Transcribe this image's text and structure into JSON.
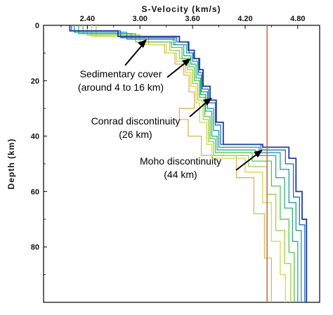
{
  "chart_data": {
    "type": "line",
    "title": "",
    "xlabel": "S-Velocity (km/s)",
    "ylabel": "Depth (km)",
    "x_axis_position": "top",
    "y_inverted": true,
    "xlim": [
      1.9,
      5.05
    ],
    "ylim": [
      0,
      100
    ],
    "x_ticks": [
      "2.40",
      "3.00",
      "3.60",
      "4.20",
      "4.80"
    ],
    "x_tick_values": [
      2.4,
      3.0,
      3.6,
      4.2,
      4.8
    ],
    "y_ticks": [
      "0",
      "20",
      "40",
      "60",
      "80"
    ],
    "y_tick_values": [
      0,
      20,
      40,
      60,
      80
    ],
    "grid": false,
    "reference_line": {
      "velocity": 4.45,
      "color": "#c0602a"
    },
    "series": [
      {
        "color": "#1f3a9e",
        "points": [
          [
            2.2,
            0
          ],
          [
            2.2,
            2
          ],
          [
            2.75,
            2
          ],
          [
            2.75,
            4
          ],
          [
            3.45,
            4
          ],
          [
            3.45,
            6
          ],
          [
            3.55,
            6
          ],
          [
            3.55,
            9
          ],
          [
            3.62,
            9
          ],
          [
            3.62,
            12
          ],
          [
            3.68,
            12
          ],
          [
            3.68,
            16
          ],
          [
            3.72,
            16
          ],
          [
            3.72,
            22
          ],
          [
            3.8,
            22
          ],
          [
            3.8,
            27
          ],
          [
            3.87,
            27
          ],
          [
            3.87,
            35
          ],
          [
            3.95,
            35
          ],
          [
            3.95,
            43
          ],
          [
            4.4,
            43
          ],
          [
            4.4,
            44
          ],
          [
            4.7,
            44
          ],
          [
            4.7,
            48
          ],
          [
            4.78,
            48
          ],
          [
            4.78,
            60
          ],
          [
            4.85,
            60
          ],
          [
            4.85,
            70
          ],
          [
            4.9,
            70
          ],
          [
            4.9,
            100
          ]
        ]
      },
      {
        "color": "#1e6fb8",
        "points": [
          [
            2.22,
            0
          ],
          [
            2.22,
            2
          ],
          [
            2.78,
            2
          ],
          [
            2.78,
            4.5
          ],
          [
            3.42,
            4.5
          ],
          [
            3.42,
            6
          ],
          [
            3.56,
            6
          ],
          [
            3.56,
            10
          ],
          [
            3.61,
            10
          ],
          [
            3.61,
            12
          ],
          [
            3.67,
            12
          ],
          [
            3.67,
            17
          ],
          [
            3.71,
            17
          ],
          [
            3.71,
            23
          ],
          [
            3.78,
            23
          ],
          [
            3.78,
            28
          ],
          [
            3.86,
            28
          ],
          [
            3.86,
            36
          ],
          [
            3.92,
            36
          ],
          [
            3.92,
            43
          ],
          [
            4.38,
            43
          ],
          [
            4.38,
            45
          ],
          [
            4.66,
            45
          ],
          [
            4.66,
            50
          ],
          [
            4.75,
            50
          ],
          [
            4.75,
            62
          ],
          [
            4.82,
            62
          ],
          [
            4.82,
            72
          ],
          [
            4.88,
            72
          ],
          [
            4.88,
            100
          ]
        ]
      },
      {
        "color": "#1e9aa8",
        "points": [
          [
            2.25,
            0
          ],
          [
            2.25,
            2.5
          ],
          [
            2.85,
            2.5
          ],
          [
            2.85,
            5
          ],
          [
            3.4,
            5
          ],
          [
            3.4,
            7
          ],
          [
            3.53,
            7
          ],
          [
            3.53,
            10
          ],
          [
            3.6,
            10
          ],
          [
            3.6,
            13
          ],
          [
            3.66,
            13
          ],
          [
            3.66,
            18
          ],
          [
            3.7,
            18
          ],
          [
            3.7,
            24
          ],
          [
            3.77,
            24
          ],
          [
            3.77,
            30
          ],
          [
            3.84,
            30
          ],
          [
            3.84,
            38
          ],
          [
            3.9,
            38
          ],
          [
            3.9,
            44
          ],
          [
            4.36,
            44
          ],
          [
            4.36,
            46
          ],
          [
            4.6,
            46
          ],
          [
            4.6,
            52
          ],
          [
            4.7,
            52
          ],
          [
            4.7,
            64
          ],
          [
            4.78,
            64
          ],
          [
            4.78,
            74
          ],
          [
            4.84,
            74
          ],
          [
            4.84,
            100
          ]
        ]
      },
      {
        "color": "#2cb07a",
        "points": [
          [
            2.3,
            0
          ],
          [
            2.3,
            3
          ],
          [
            2.9,
            3
          ],
          [
            2.9,
            5
          ],
          [
            3.38,
            5
          ],
          [
            3.38,
            7
          ],
          [
            3.5,
            7
          ],
          [
            3.5,
            11
          ],
          [
            3.58,
            11
          ],
          [
            3.58,
            14
          ],
          [
            3.64,
            14
          ],
          [
            3.64,
            19
          ],
          [
            3.69,
            19
          ],
          [
            3.69,
            25
          ],
          [
            3.75,
            25
          ],
          [
            3.75,
            31
          ],
          [
            3.82,
            31
          ],
          [
            3.82,
            40
          ],
          [
            3.88,
            40
          ],
          [
            3.88,
            45
          ],
          [
            4.32,
            45
          ],
          [
            4.32,
            47
          ],
          [
            4.55,
            47
          ],
          [
            4.55,
            55
          ],
          [
            4.65,
            55
          ],
          [
            4.65,
            66
          ],
          [
            4.74,
            66
          ],
          [
            4.74,
            78
          ],
          [
            4.8,
            78
          ],
          [
            4.8,
            100
          ]
        ]
      },
      {
        "color": "#56c44e",
        "points": [
          [
            2.35,
            0
          ],
          [
            2.35,
            3
          ],
          [
            2.95,
            3
          ],
          [
            2.95,
            6
          ],
          [
            3.36,
            6
          ],
          [
            3.36,
            8
          ],
          [
            3.48,
            8
          ],
          [
            3.48,
            12
          ],
          [
            3.56,
            12
          ],
          [
            3.56,
            15
          ],
          [
            3.62,
            15
          ],
          [
            3.62,
            20
          ],
          [
            3.68,
            20
          ],
          [
            3.68,
            26
          ],
          [
            3.74,
            26
          ],
          [
            3.74,
            33
          ],
          [
            3.8,
            33
          ],
          [
            3.8,
            41
          ],
          [
            3.86,
            41
          ],
          [
            3.86,
            46
          ],
          [
            4.28,
            46
          ],
          [
            4.28,
            49
          ],
          [
            4.5,
            49
          ],
          [
            4.5,
            58
          ],
          [
            4.6,
            58
          ],
          [
            4.6,
            70
          ],
          [
            4.7,
            70
          ],
          [
            4.7,
            82
          ],
          [
            4.76,
            82
          ],
          [
            4.76,
            100
          ]
        ]
      },
      {
        "color": "#9bd33c",
        "points": [
          [
            2.4,
            0
          ],
          [
            2.4,
            3.5
          ],
          [
            3.0,
            3.5
          ],
          [
            3.0,
            6
          ],
          [
            3.34,
            6
          ],
          [
            3.34,
            9
          ],
          [
            3.45,
            9
          ],
          [
            3.45,
            12
          ],
          [
            3.54,
            12
          ],
          [
            3.54,
            16
          ],
          [
            3.6,
            16
          ],
          [
            3.6,
            21
          ],
          [
            3.66,
            21
          ],
          [
            3.66,
            27
          ],
          [
            3.72,
            27
          ],
          [
            3.72,
            34
          ],
          [
            3.78,
            34
          ],
          [
            3.78,
            42
          ],
          [
            3.84,
            42
          ],
          [
            3.84,
            47
          ],
          [
            4.24,
            47
          ],
          [
            4.24,
            51
          ],
          [
            4.45,
            51
          ],
          [
            4.45,
            61
          ],
          [
            4.55,
            61
          ],
          [
            4.55,
            74
          ],
          [
            4.65,
            74
          ],
          [
            4.65,
            86
          ],
          [
            4.72,
            86
          ],
          [
            4.72,
            100
          ]
        ]
      },
      {
        "color": "#d6d84a",
        "points": [
          [
            2.45,
            0
          ],
          [
            2.45,
            4
          ],
          [
            3.05,
            4
          ],
          [
            3.05,
            7
          ],
          [
            3.3,
            7
          ],
          [
            3.3,
            10
          ],
          [
            3.42,
            10
          ],
          [
            3.42,
            13
          ],
          [
            3.52,
            13
          ],
          [
            3.52,
            17
          ],
          [
            3.58,
            17
          ],
          [
            3.58,
            22
          ],
          [
            3.64,
            22
          ],
          [
            3.64,
            28
          ],
          [
            3.68,
            28
          ],
          [
            3.68,
            35
          ],
          [
            3.76,
            35
          ],
          [
            3.76,
            43
          ],
          [
            3.82,
            43
          ],
          [
            3.82,
            48
          ],
          [
            4.2,
            48
          ],
          [
            4.2,
            53
          ],
          [
            4.4,
            53
          ],
          [
            4.4,
            64
          ],
          [
            4.5,
            64
          ],
          [
            4.5,
            78
          ],
          [
            4.6,
            78
          ],
          [
            4.6,
            90
          ],
          [
            4.66,
            90
          ],
          [
            4.66,
            100
          ]
        ]
      },
      {
        "color": "#e0b25a",
        "points": [
          [
            2.5,
            0
          ],
          [
            2.5,
            4
          ],
          [
            3.1,
            4
          ],
          [
            3.1,
            7
          ],
          [
            3.28,
            7
          ],
          [
            3.28,
            10
          ],
          [
            3.4,
            10
          ],
          [
            3.4,
            14
          ],
          [
            3.5,
            14
          ],
          [
            3.5,
            18
          ],
          [
            3.56,
            18
          ],
          [
            3.56,
            24
          ],
          [
            3.62,
            24
          ],
          [
            3.62,
            30
          ],
          [
            3.45,
            30
          ],
          [
            3.45,
            34
          ],
          [
            3.55,
            34
          ],
          [
            3.55,
            40
          ],
          [
            3.7,
            40
          ],
          [
            3.7,
            47
          ],
          [
            4.1,
            47
          ],
          [
            4.1,
            55
          ],
          [
            4.3,
            55
          ],
          [
            4.3,
            68
          ],
          [
            4.42,
            68
          ],
          [
            4.42,
            84
          ],
          [
            4.5,
            84
          ],
          [
            4.5,
            100
          ]
        ]
      }
    ],
    "annotations": [
      {
        "lines": [
          "Sedimentary cover",
          "(around 4 to 16 km)"
        ]
      },
      {
        "lines": [
          "Conrad discontinuity",
          "(26 km)"
        ]
      },
      {
        "lines": [
          "Moho discontinuity",
          "(44 km)"
        ]
      }
    ]
  },
  "colors": {
    "axis": "#000000",
    "text": "#111111",
    "annotation_arrow": "#000000"
  }
}
